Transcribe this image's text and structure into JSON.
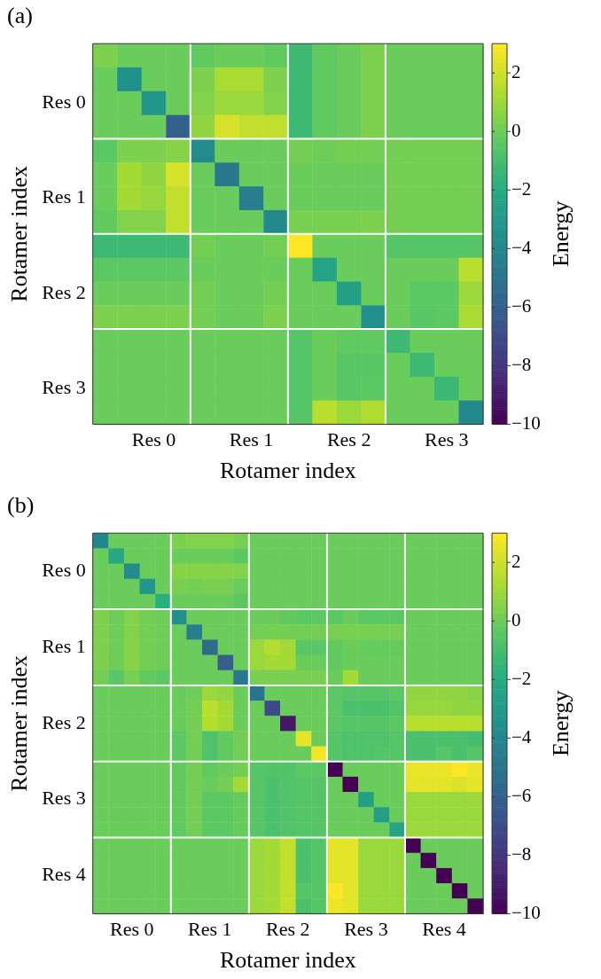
{
  "chart_data": [
    {
      "type": "heatmap",
      "title": "(a)",
      "xlabel": "Rotamer index",
      "ylabel": "Rotamer index",
      "clabel": "Energy",
      "grid": true,
      "categories": [
        null,
        null,
        "Res 0",
        null,
        null,
        null,
        "Res 1",
        null,
        null,
        null,
        "Res 2",
        null,
        null,
        null,
        "Res 3",
        null
      ],
      "y_categories": [
        null,
        null,
        "Res 0",
        null,
        null,
        null,
        "Res 1",
        null,
        null,
        null,
        "Res 2",
        null,
        null,
        null,
        "Res 3",
        null
      ],
      "clim": [
        -10,
        3
      ],
      "cticks": [
        {
          "value": -10,
          "label": "−10"
        },
        {
          "value": -8,
          "label": "−8"
        },
        {
          "value": -6,
          "label": "−6"
        },
        {
          "value": -4,
          "label": "−4"
        },
        {
          "value": -2,
          "label": "−2"
        },
        {
          "value": 0,
          "label": "0"
        },
        {
          "value": 2,
          "label": "2"
        }
      ],
      "cells": [
        [
          0.4,
          0,
          0,
          0,
          -0.2,
          0,
          0,
          -0.2,
          -1.2,
          -0.2,
          0,
          0.4,
          0,
          0,
          0,
          0
        ],
        [
          0,
          -3.5,
          0,
          0,
          0.4,
          1.3,
          1.3,
          0.4,
          -1.2,
          -0.2,
          0,
          0.4,
          0,
          0,
          0,
          0
        ],
        [
          0,
          0,
          -3.2,
          0,
          0.5,
          1,
          1,
          0.5,
          -1.2,
          -0.2,
          0,
          0.4,
          0,
          0,
          0,
          0
        ],
        [
          0,
          0,
          0,
          -6,
          0.8,
          2.2,
          1.8,
          1.8,
          -1.2,
          -0.2,
          0,
          0.4,
          0,
          0,
          0,
          0
        ],
        [
          -0.3,
          0.4,
          0.4,
          0.6,
          -3.8,
          0,
          0,
          0,
          0.2,
          0.1,
          0.2,
          0.2,
          0.2,
          0.2,
          0.2,
          0.2
        ],
        [
          0,
          1.2,
          0.8,
          2.2,
          0,
          -4.8,
          0,
          0,
          0,
          0,
          0,
          0,
          0.2,
          0.2,
          0.2,
          0.2
        ],
        [
          0,
          1.2,
          0.9,
          1.8,
          0,
          0,
          -4.5,
          0,
          0,
          0,
          0,
          0,
          0.2,
          0.2,
          0.2,
          0.2
        ],
        [
          -0.2,
          0.5,
          0.5,
          1.8,
          0,
          0,
          0,
          -3.9,
          0.3,
          0.3,
          0.3,
          0.4,
          0.2,
          0.2,
          0.2,
          0.2
        ],
        [
          -1.2,
          -1.2,
          -1.2,
          -1.2,
          0.2,
          0,
          0,
          0.2,
          3,
          0,
          0,
          0,
          -0.5,
          -0.5,
          -0.5,
          -0.5
        ],
        [
          -0.3,
          -0.3,
          -0.3,
          -0.3,
          0,
          0,
          0,
          0,
          0,
          -2.5,
          0,
          0,
          0,
          0,
          0,
          1.6
        ],
        [
          0,
          0,
          0,
          0,
          0.2,
          0,
          0,
          0.2,
          0,
          0,
          -2.7,
          0,
          0,
          -0.3,
          -0.3,
          1
        ],
        [
          0.4,
          0.4,
          0.4,
          0.4,
          0.2,
          0,
          0,
          0.4,
          0,
          0,
          0,
          -3.6,
          0,
          -0.4,
          -0.3,
          1.3
        ],
        [
          0,
          0,
          0,
          0,
          0,
          0,
          0,
          0,
          -0.5,
          0,
          -0.2,
          -0.2,
          -1.2,
          0,
          0,
          0
        ],
        [
          0,
          0,
          0,
          0,
          0,
          0,
          0,
          0,
          -0.5,
          0,
          -0.4,
          -0.4,
          0,
          -1.2,
          0,
          0
        ],
        [
          0,
          0,
          0,
          0,
          0,
          0,
          0,
          0,
          -0.5,
          0,
          -0.4,
          -0.3,
          0,
          0,
          -1.3,
          0
        ],
        [
          0,
          0,
          0,
          0,
          0,
          0,
          0,
          0,
          -0.5,
          1.6,
          1,
          1.4,
          0,
          0,
          0,
          -3.9
        ]
      ]
    },
    {
      "type": "heatmap",
      "title": "(b)",
      "xlabel": "Rotamer index",
      "ylabel": "Rotamer index",
      "clabel": "Energy",
      "grid": true,
      "categories": [
        null,
        null,
        "Res 0",
        null,
        null,
        null,
        null,
        "Res 1",
        null,
        null,
        null,
        null,
        "Res 2",
        null,
        null,
        null,
        null,
        "Res 3",
        null,
        null,
        null,
        null,
        "Res 4",
        null,
        null
      ],
      "y_categories": [
        null,
        null,
        "Res 0",
        null,
        null,
        null,
        null,
        "Res 1",
        null,
        null,
        null,
        null,
        "Res 2",
        null,
        null,
        null,
        null,
        "Res 3",
        null,
        null,
        null,
        null,
        "Res 4",
        null,
        null
      ],
      "clim": [
        -10,
        3
      ],
      "cticks": [
        {
          "value": -10,
          "label": "−10"
        },
        {
          "value": -8,
          "label": "−8"
        },
        {
          "value": -6,
          "label": "−6"
        },
        {
          "value": -4,
          "label": "−4"
        },
        {
          "value": -2,
          "label": "−2"
        },
        {
          "value": 0,
          "label": "0"
        },
        {
          "value": 2,
          "label": "2"
        }
      ],
      "cells": [
        [
          -4,
          0,
          0,
          0,
          0,
          0.4,
          0.5,
          0.5,
          0.5,
          0.3,
          0,
          0,
          0,
          0,
          0,
          0,
          0,
          0,
          0,
          0,
          0,
          0,
          0,
          0,
          0
        ],
        [
          0,
          -2.2,
          0,
          0,
          0,
          0,
          0,
          0,
          0,
          -0.3,
          0,
          0,
          0,
          0,
          0,
          0,
          0,
          0,
          0,
          0,
          0,
          0,
          0,
          0,
          0
        ],
        [
          0,
          0,
          -3.8,
          0,
          0,
          0.6,
          0.6,
          0.6,
          0.6,
          0.5,
          0,
          0,
          0,
          0,
          0,
          0,
          0,
          0,
          0,
          0,
          0,
          0,
          0,
          0,
          0
        ],
        [
          0,
          0,
          0,
          -3.2,
          0,
          0.3,
          0.2,
          0.3,
          0.3,
          0,
          0,
          0,
          0,
          0,
          0,
          0,
          0,
          0,
          0,
          0,
          0,
          0,
          0,
          0,
          0
        ],
        [
          0,
          0,
          0,
          0,
          -1.8,
          0,
          0,
          0,
          0,
          -0.3,
          0,
          0,
          0,
          0,
          0,
          0,
          0,
          0,
          0,
          0,
          0,
          0,
          0,
          0,
          0
        ],
        [
          0.4,
          0.1,
          0.5,
          0.2,
          0.1,
          -3.6,
          0,
          0,
          0,
          0,
          0,
          0,
          -0.2,
          -0.3,
          -0.3,
          -0.3,
          0,
          -0.3,
          -0.3,
          -0.3,
          0,
          0,
          0,
          0,
          0
        ],
        [
          0.4,
          0.1,
          0.5,
          0.2,
          0.1,
          0,
          -4.5,
          0,
          0,
          0,
          0.2,
          0.2,
          0.2,
          0.2,
          0.2,
          0.3,
          0.3,
          0.3,
          0.3,
          0.3,
          0,
          0,
          0,
          0,
          0
        ],
        [
          0.4,
          0.1,
          0.6,
          0.2,
          0.1,
          0,
          0,
          -5.5,
          0,
          0,
          1,
          1.5,
          1.2,
          -0.4,
          -0.4,
          -0.2,
          0,
          -0.1,
          -0.1,
          -0.1,
          0,
          0,
          0,
          0,
          0
        ],
        [
          0.4,
          0.1,
          0.6,
          0.2,
          0.1,
          0,
          0,
          0,
          -6.2,
          0,
          1,
          1.2,
          1.2,
          0,
          0,
          -0.2,
          0,
          0,
          0,
          0,
          0,
          0,
          0,
          0,
          0
        ],
        [
          0.2,
          -0.4,
          0.3,
          -0.2,
          -0.3,
          0,
          0,
          0,
          0,
          -4.8,
          0.3,
          0.3,
          0.3,
          0.3,
          0.3,
          0,
          1.2,
          0,
          0,
          0,
          0,
          0,
          0,
          0,
          0
        ],
        [
          0,
          0,
          0,
          0,
          0,
          0,
          0.1,
          1,
          0.8,
          0,
          -5,
          0,
          0,
          0,
          0,
          -0.3,
          -0.5,
          -0.5,
          -0.5,
          -0.3,
          0.8,
          0.8,
          0.8,
          0.8,
          0.6
        ],
        [
          0,
          0,
          0,
          0,
          0,
          0,
          0.2,
          1.6,
          1.2,
          0,
          0,
          -7,
          0,
          0,
          0,
          -0.3,
          -0.8,
          -0.8,
          -0.8,
          -0.6,
          0.9,
          0.9,
          0.9,
          0.8,
          0.8
        ],
        [
          0,
          0,
          0,
          0,
          0,
          0,
          0.2,
          1.5,
          1.2,
          0,
          0,
          0,
          -9.2,
          0,
          0,
          -0.3,
          -0.5,
          -0.5,
          -0.5,
          -0.3,
          1.6,
          1.6,
          1.6,
          1.6,
          1.6
        ],
        [
          0,
          0,
          0,
          0,
          0,
          -0.3,
          0.2,
          -0.7,
          -0.2,
          0.2,
          0,
          0,
          0,
          2.5,
          0,
          -0.5,
          -0.7,
          -0.7,
          -0.7,
          -0.5,
          -0.8,
          -0.8,
          -0.8,
          -0.8,
          -1
        ],
        [
          0,
          0,
          0,
          0,
          0,
          -0.3,
          0.2,
          -0.7,
          -0.2,
          0.2,
          0,
          0,
          0,
          0,
          2.8,
          -0.5,
          -0.7,
          -0.7,
          -0.5,
          -0.5,
          -0.8,
          -0.8,
          -0.5,
          -0.8,
          -0.5
        ],
        [
          0,
          0,
          0,
          0,
          0,
          -0.2,
          0.2,
          -0.2,
          0,
          0.2,
          -0.5,
          -0.6,
          -0.6,
          -0.3,
          -0.3,
          -10,
          0,
          0,
          0,
          0,
          2.6,
          2.6,
          2.6,
          3,
          2.6
        ],
        [
          0,
          0,
          0,
          0,
          0,
          -0.2,
          0.2,
          0,
          0.2,
          1.2,
          -0.5,
          -0.8,
          -0.6,
          -0.5,
          -0.5,
          0,
          -10,
          0,
          0,
          0,
          2.5,
          2.5,
          2.5,
          2.3,
          2.5
        ],
        [
          0,
          0,
          0,
          0,
          0,
          -0.2,
          0.2,
          -0.3,
          -0.3,
          -0.1,
          -0.5,
          -0.8,
          -0.6,
          -0.5,
          -0.5,
          0,
          0,
          -2.7,
          0,
          0,
          1,
          1,
          1,
          1,
          1
        ],
        [
          0,
          0,
          0,
          0,
          0,
          -0.2,
          0.2,
          -0.3,
          -0.3,
          -0.1,
          -0.5,
          -0.8,
          -0.6,
          -0.5,
          -0.5,
          0,
          0,
          0,
          -2.7,
          0,
          1,
          1,
          1,
          1,
          1
        ],
        [
          0,
          0,
          0,
          0,
          0,
          -0.2,
          0.2,
          -0.3,
          -0.3,
          -0.1,
          -0.5,
          -0.8,
          -0.6,
          -0.5,
          -0.5,
          0,
          0,
          0,
          0,
          -2.5,
          1,
          1,
          1,
          1,
          1
        ],
        [
          0,
          0,
          0,
          0,
          0,
          0,
          0,
          0,
          0,
          0,
          1,
          1.2,
          1.8,
          -0.8,
          -0.5,
          2.5,
          2.5,
          1,
          1,
          1,
          -10,
          0,
          0,
          0,
          0
        ],
        [
          0,
          0,
          0,
          0,
          0,
          0,
          0,
          0,
          0,
          0,
          1,
          1.2,
          1.8,
          -0.8,
          -0.5,
          2.5,
          2.5,
          1,
          1,
          1,
          0,
          -10,
          0,
          0,
          0
        ],
        [
          0,
          0,
          0,
          0,
          0,
          0,
          0,
          0,
          0,
          0,
          1,
          1.2,
          1.8,
          -0.8,
          -0.5,
          2.5,
          2.5,
          1,
          1,
          1,
          0,
          0,
          -10,
          0,
          0
        ],
        [
          0,
          0,
          0,
          0,
          0,
          0,
          0,
          0,
          0,
          0,
          1,
          1.2,
          1.8,
          -0.5,
          -0.5,
          3,
          2.5,
          1,
          1,
          1,
          0,
          0,
          0,
          -10,
          0
        ],
        [
          0,
          0,
          0,
          0,
          0,
          0,
          0,
          0,
          0,
          0,
          1,
          1.2,
          1.8,
          -0.8,
          -0.5,
          2.7,
          2.5,
          1,
          1,
          1,
          0,
          0,
          0,
          0,
          -10
        ]
      ]
    }
  ]
}
